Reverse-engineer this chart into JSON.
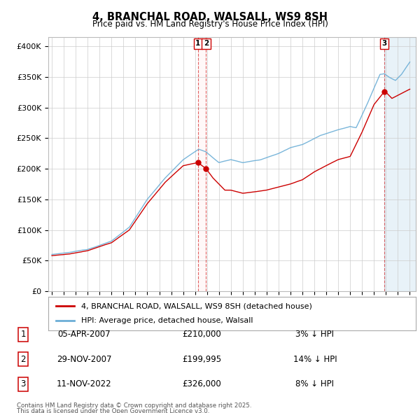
{
  "title": "4, BRANCHAL ROAD, WALSALL, WS9 8SH",
  "subtitle": "Price paid vs. HM Land Registry's House Price Index (HPI)",
  "ytick_labels": [
    "£0",
    "£50K",
    "£100K",
    "£150K",
    "£200K",
    "£250K",
    "£300K",
    "£350K",
    "£400K"
  ],
  "yticks": [
    0,
    50000,
    100000,
    150000,
    200000,
    250000,
    300000,
    350000,
    400000
  ],
  "ylim": [
    0,
    415000
  ],
  "xlim_start": 1995,
  "xlim_end": 2025,
  "legend_line1": "4, BRANCHAL ROAD, WALSALL, WS9 8SH (detached house)",
  "legend_line2": "HPI: Average price, detached house, Walsall",
  "transaction1_date": "05-APR-2007",
  "transaction1_price": "£210,000",
  "transaction1_hpi": "3% ↓ HPI",
  "transaction1_x": 2007.25,
  "transaction1_y": 210000,
  "transaction2_date": "29-NOV-2007",
  "transaction2_price": "£199,995",
  "transaction2_hpi": "14% ↓ HPI",
  "transaction2_x": 2007.92,
  "transaction2_y": 199995,
  "transaction3_date": "11-NOV-2022",
  "transaction3_price": "£326,000",
  "transaction3_hpi": "8% ↓ HPI",
  "transaction3_x": 2022.86,
  "transaction3_y": 326000,
  "footer_line1": "Contains HM Land Registry data © Crown copyright and database right 2025.",
  "footer_line2": "This data is licensed under the Open Government Licence v3.0.",
  "hpi_color": "#6baed6",
  "price_color": "#cc0000",
  "grid_color": "#cccccc",
  "shade_color": "#ddeeff"
}
